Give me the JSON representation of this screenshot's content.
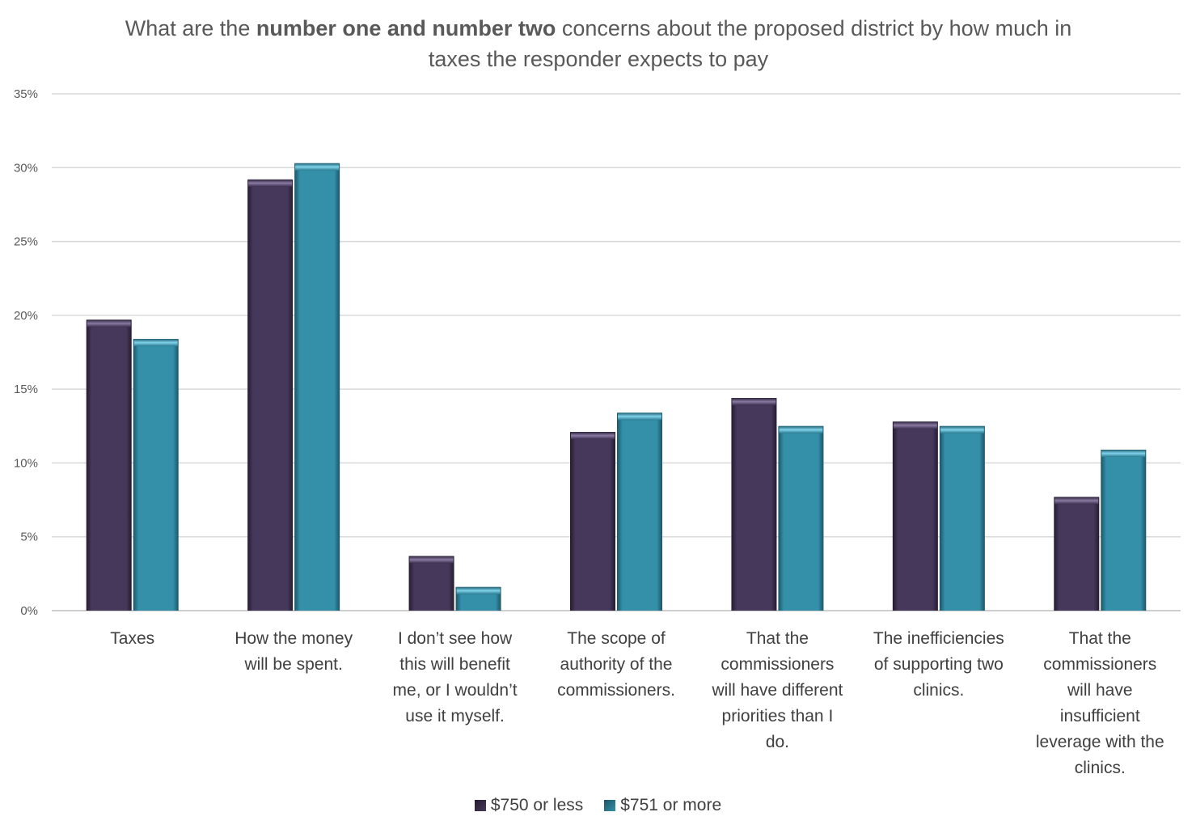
{
  "title": {
    "part1": "What are the ",
    "bold1": "number one and number two",
    "part2": " concerns about the proposed district by how much in taxes the responder expects to pay"
  },
  "chart_data": {
    "type": "bar",
    "title": "What are the number one and number two concerns about the proposed district by how much in taxes the responder expects to pay",
    "xlabel": "",
    "ylabel": "",
    "ylim": [
      0,
      35
    ],
    "y_format": "percent",
    "y_ticks": [
      "0%",
      "5%",
      "10%",
      "15%",
      "20%",
      "25%",
      "30%",
      "35%"
    ],
    "grid": true,
    "legend_position": "bottom",
    "categories": [
      [
        "Taxes"
      ],
      [
        "How the money",
        "will be spent."
      ],
      [
        "I don’t see how",
        "this will benefit",
        "me, or I wouldn’t",
        "use it myself."
      ],
      [
        "The scope of",
        "authority of the",
        "commissioners."
      ],
      [
        "That the",
        "commissioners",
        "will have different",
        "priorities than I",
        "do."
      ],
      [
        "The inefficiencies",
        "of supporting two",
        "clinics."
      ],
      [
        "That the",
        "commissioners",
        "will have",
        "insufficient",
        "leverage with the",
        "clinics."
      ]
    ],
    "series": [
      {
        "name": "$750 or less",
        "color": "#46385a",
        "values": [
          19.7,
          29.2,
          3.7,
          12.1,
          14.4,
          12.8,
          7.7
        ]
      },
      {
        "name": "$751 or more",
        "color": "#348fa8",
        "values": [
          18.4,
          30.3,
          1.6,
          13.4,
          12.5,
          12.5,
          10.9
        ]
      }
    ]
  }
}
